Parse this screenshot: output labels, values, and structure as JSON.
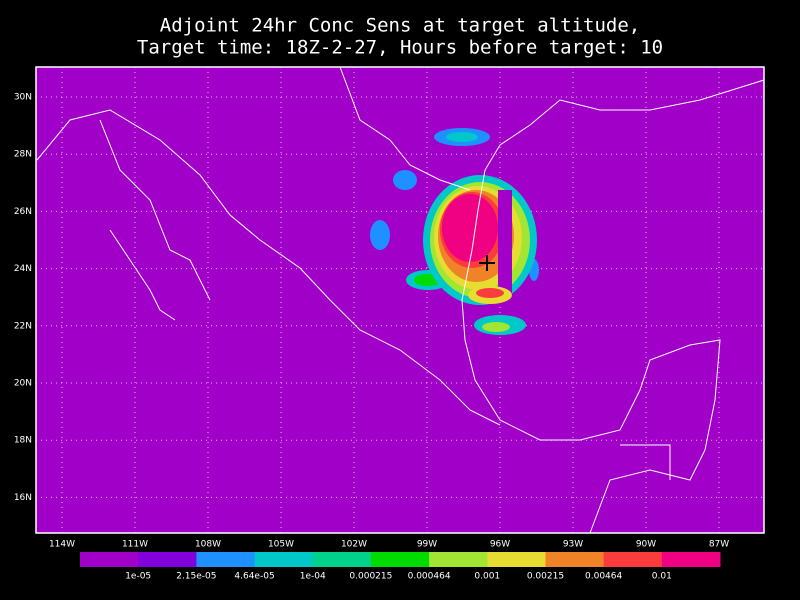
{
  "title": [
    "Adjoint 24hr Conc Sens at target altitude,",
    "Target time: 18Z-2-27, Hours before target: 10"
  ],
  "map": {
    "background": "#a000c8",
    "lat_labels": [
      "30N",
      "28N",
      "26N",
      "24N",
      "22N",
      "20N",
      "18N",
      "16N"
    ],
    "lon_labels": [
      "114W",
      "111W",
      "108W",
      "105W",
      "102W",
      "99W",
      "96W",
      "93W",
      "90W",
      "87W"
    ]
  },
  "colorbar": {
    "colors": [
      "#a000c8",
      "#8200dc",
      "#1e90ff",
      "#00c8c8",
      "#00d28c",
      "#00dc00",
      "#a0e632",
      "#e6dc32",
      "#f08228",
      "#fa3c3c",
      "#f00082"
    ],
    "labels": [
      "1e-05",
      "2.15e-05",
      "4.64e-05",
      "1e-04",
      "0.000215",
      "0.000464",
      "0.001",
      "0.00215",
      "0.00464",
      "0.01"
    ]
  }
}
